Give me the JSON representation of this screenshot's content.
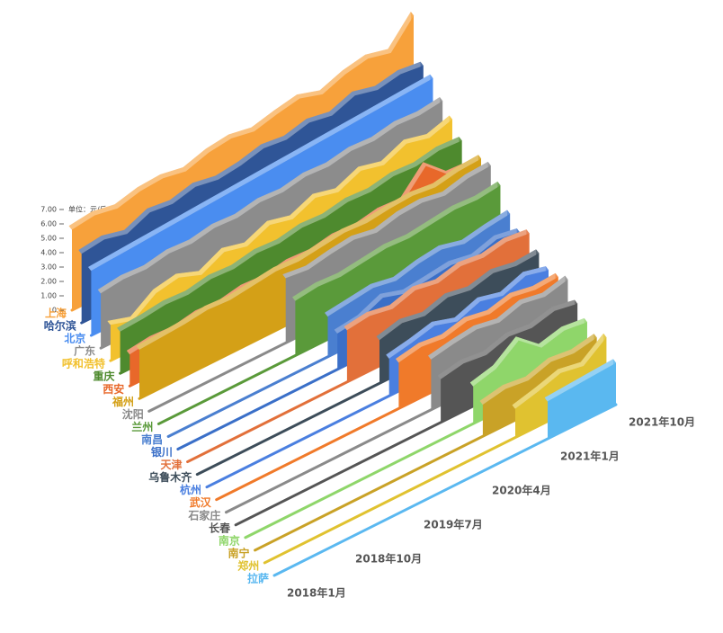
{
  "chart_data": {
    "type": "area3d",
    "unit_label": "单位：元/斤",
    "categories": [
      "2018年1月",
      null,
      null,
      "2018年10月",
      null,
      null,
      "2019年7月",
      null,
      null,
      "2020年4月",
      null,
      null,
      "2021年1月",
      null,
      null,
      "2021年10月"
    ],
    "ylim": [
      0,
      7
    ],
    "yticks": [
      0,
      {
        "value": 1,
        "label": "1.00"
      },
      {
        "value": 2,
        "label": "2.00"
      },
      {
        "value": 3,
        "label": "3.00"
      },
      {
        "value": 4,
        "label": "4.00"
      },
      {
        "value": 5,
        "label": "5.00"
      },
      {
        "value": 6,
        "label": "6.00"
      },
      {
        "value": 7,
        "label": "7.00"
      }
    ],
    "series": [
      {
        "name": "上海",
        "color": "#f7a13b",
        "values": [
          5.6,
          5.8,
          5.5,
          5.9,
          6.0,
          5.7,
          6.2,
          6.4,
          6.1,
          6.5,
          6.8,
          6.3,
          6.9,
          7.2,
          6.8,
          8.6
        ]
      },
      {
        "name": "哈尔滨",
        "color": "#2f5597",
        "values": [
          4.8,
          5.0,
          4.6,
          5.3,
          5.1,
          5.5,
          5.2,
          5.4,
          5.8,
          5.6,
          6.0,
          5.7,
          6.3,
          5.9,
          6.2,
          6.0
        ]
      },
      {
        "name": "北京",
        "color": "#4a8df0",
        "values": [
          4.5,
          4.6,
          4.7,
          4.8,
          4.9,
          5.0,
          5.1,
          5.2,
          5.3,
          5.4,
          5.5,
          5.6,
          5.7,
          5.8,
          5.9,
          6.0
        ]
      },
      {
        "name": "广东",
        "color": "#8c8c8c",
        "values": [
          3.8,
          4.0,
          3.9,
          4.2,
          4.1,
          4.4,
          4.3,
          4.6,
          4.5,
          4.8,
          4.7,
          5.0,
          4.9,
          5.2,
          5.1,
          5.3
        ]
      },
      {
        "name": "呼和浩特",
        "color": "#f2c12e",
        "values": [
          2.5,
          2.0,
          3.1,
          3.4,
          2.8,
          3.6,
          3.2,
          3.9,
          3.5,
          4.2,
          3.8,
          4.5,
          4.1,
          4.8,
          4.4,
          4.9
        ]
      },
      {
        "name": "重庆",
        "color": "#4e8a2e",
        "values": [
          2.9,
          3.0,
          3.2,
          3.1,
          3.4,
          3.3,
          3.6,
          3.5,
          3.8,
          3.7,
          4.0,
          3.9,
          4.2,
          4.1,
          4.4,
          4.3
        ]
      },
      {
        "name": "西安",
        "color": "#e8682a",
        "values": [
          2.2,
          2.4,
          2.3,
          2.6,
          2.5,
          2.8,
          2.7,
          3.0,
          2.9,
          3.2,
          3.1,
          3.4,
          3.3,
          5.0,
          3.6,
          3.5
        ]
      },
      {
        "name": "福州",
        "color": "#d4a017",
        "values": [
          3.4,
          3.5,
          3.6,
          3.8,
          3.7,
          3.9,
          4.1,
          4.0,
          4.2,
          4.4,
          4.3,
          4.5,
          4.6,
          4.4,
          4.7,
          4.8
        ]
      },
      {
        "name": "沈阳",
        "color": "#8a8a8a",
        "values": [
          null,
          null,
          null,
          null,
          null,
          null,
          4.5,
          4.3,
          4.6,
          4.8,
          4.5,
          4.9,
          5.0,
          4.7,
          5.1,
          5.2
        ]
      },
      {
        "name": "兰州",
        "color": "#5a9a3a",
        "values": [
          null,
          null,
          null,
          null,
          null,
          null,
          3.8,
          4.0,
          3.9,
          4.1,
          4.3,
          4.2,
          4.4,
          4.6,
          4.5,
          4.7
        ]
      },
      {
        "name": "南昌",
        "color": "#4a7fd0",
        "values": [
          null,
          null,
          null,
          null,
          null,
          null,
          null,
          2.8,
          3.0,
          3.2,
          2.9,
          3.3,
          3.5,
          3.1,
          3.4,
          3.6
        ]
      },
      {
        "name": "银川",
        "color": "#3a6fc8",
        "values": [
          null,
          null,
          null,
          null,
          null,
          null,
          null,
          2.5,
          2.7,
          3.4,
          2.9,
          3.1,
          3.3,
          3.0,
          3.5,
          3.2
        ]
      },
      {
        "name": "天津",
        "color": "#e2703a",
        "values": [
          null,
          null,
          null,
          null,
          null,
          null,
          null,
          3.6,
          3.8,
          3.5,
          4.0,
          3.7,
          4.1,
          3.9,
          4.2,
          4.0
        ]
      },
      {
        "name": "乌鲁木齐",
        "color": "#3d4d5a",
        "values": [
          null,
          null,
          null,
          null,
          null,
          null,
          null,
          null,
          3.0,
          3.4,
          3.1,
          3.6,
          3.3,
          3.7,
          3.4,
          3.5
        ]
      },
      {
        "name": "杭州",
        "color": "#4a7fe0",
        "values": [
          null,
          null,
          null,
          null,
          null,
          null,
          null,
          null,
          2.6,
          2.9,
          3.3,
          2.8,
          3.4,
          3.0,
          3.6,
          3.2
        ]
      },
      {
        "name": "武汉",
        "color": "#f07a2a",
        "values": [
          null,
          null,
          null,
          null,
          null,
          null,
          null,
          null,
          3.2,
          3.5,
          3.3,
          3.7,
          3.4,
          3.8,
          3.5,
          3.6
        ]
      },
      {
        "name": "石家庄",
        "color": "#8a8a8a",
        "values": [
          null,
          null,
          null,
          null,
          null,
          null,
          null,
          null,
          null,
          3.5,
          3.8,
          4.0,
          3.7,
          4.2,
          3.9,
          4.3
        ]
      },
      {
        "name": "长春",
        "color": "#555555",
        "values": [
          null,
          null,
          null,
          null,
          null,
          null,
          null,
          null,
          null,
          3.0,
          3.3,
          3.1,
          3.6,
          3.4,
          3.8,
          3.5
        ]
      },
      {
        "name": "南京",
        "color": "#8fd66a",
        "values": [
          null,
          null,
          null,
          null,
          null,
          null,
          null,
          null,
          null,
          null,
          2.6,
          3.0,
          4.2,
          2.9,
          3.3,
          3.1
        ]
      },
      {
        "name": "南宁",
        "color": "#c9a227",
        "values": [
          null,
          null,
          null,
          null,
          null,
          null,
          null,
          null,
          null,
          null,
          2.2,
          2.5,
          2.3,
          2.8,
          2.6,
          2.9
        ]
      },
      {
        "name": "郑州",
        "color": "#e0c230",
        "values": [
          null,
          null,
          null,
          null,
          null,
          null,
          null,
          null,
          null,
          null,
          null,
          2.0,
          2.4,
          2.9,
          2.6,
          3.8
        ]
      },
      {
        "name": "拉萨",
        "color": "#5ab8f0",
        "values": [
          null,
          null,
          null,
          null,
          null,
          null,
          null,
          null,
          null,
          null,
          null,
          null,
          2.6,
          2.7,
          2.8,
          2.9
        ]
      }
    ]
  }
}
